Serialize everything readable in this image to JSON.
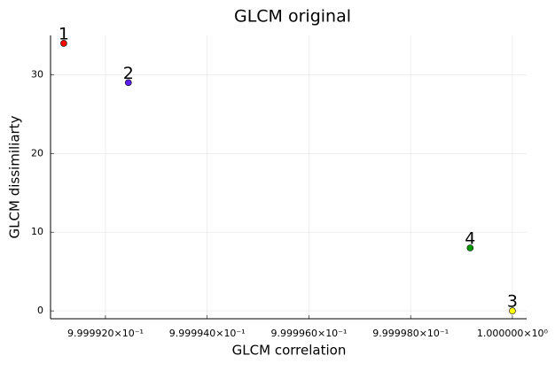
{
  "chart_data": {
    "type": "scatter",
    "title": "GLCM original",
    "x_label": "GLCM correlation",
    "y_label": "GLCM dissimiliarty",
    "x": [
      0.99999118,
      0.99999245,
      1.0,
      0.99999917
    ],
    "values": [
      34,
      29,
      0,
      8
    ],
    "labels": [
      "1",
      "2",
      "3",
      "4"
    ],
    "colors": [
      "#ff0000",
      "#5a1ef0",
      "#ffff00",
      "#009a00"
    ],
    "xlim": [
      0.99999092,
      1.00000028
    ],
    "ylim": [
      -1,
      35
    ],
    "xticks": [
      {
        "value": 0.999992,
        "label": "9.999920×10⁻¹"
      },
      {
        "value": 0.999994,
        "label": "9.999940×10⁻¹"
      },
      {
        "value": 0.999996,
        "label": "9.999960×10⁻¹"
      },
      {
        "value": 0.999998,
        "label": "9.999980×10⁻¹"
      },
      {
        "value": 1.0,
        "label": "1.000000×10⁰"
      }
    ],
    "yticks": [
      0,
      10,
      20,
      30
    ],
    "grid": true
  }
}
